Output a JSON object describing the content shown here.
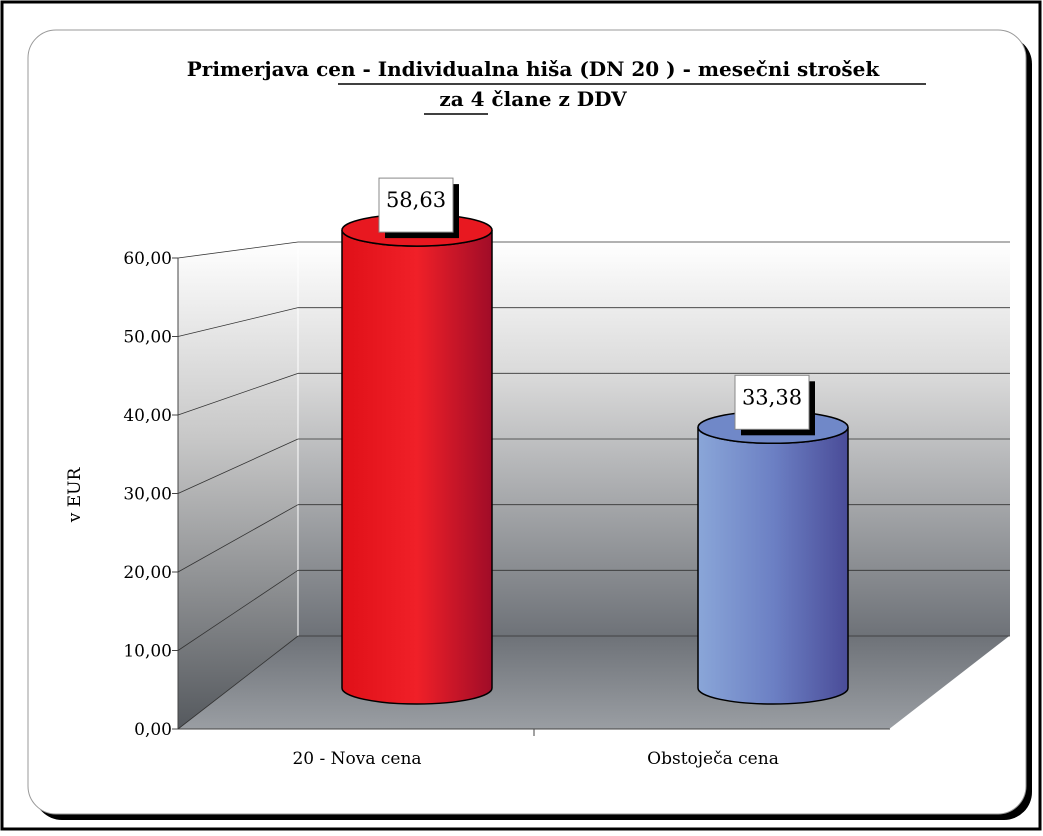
{
  "chart_data": {
    "type": "bar3d",
    "title": [
      "Primerjava cen - Individualna hiša (DN 20 ) - mesečni strošek",
      "za 4 člane z DDV"
    ],
    "ylabel": "v EUR",
    "categories": [
      "20 - Nova cena",
      "Obstoječa cena"
    ],
    "values": [
      58.63,
      33.38
    ],
    "value_labels": [
      "58,63",
      "33,38"
    ],
    "colors": [
      "#e81820",
      "#7088c8"
    ],
    "ylim": [
      0,
      60
    ],
    "yticks": [
      {
        "value": 0,
        "label": "0,00"
      },
      {
        "value": 10,
        "label": "10,00"
      },
      {
        "value": 20,
        "label": "20,00"
      },
      {
        "value": 30,
        "label": "30,00"
      },
      {
        "value": 40,
        "label": "40,00"
      },
      {
        "value": 50,
        "label": "50,00"
      },
      {
        "value": 60,
        "label": "60,00"
      }
    ],
    "grid": true
  }
}
